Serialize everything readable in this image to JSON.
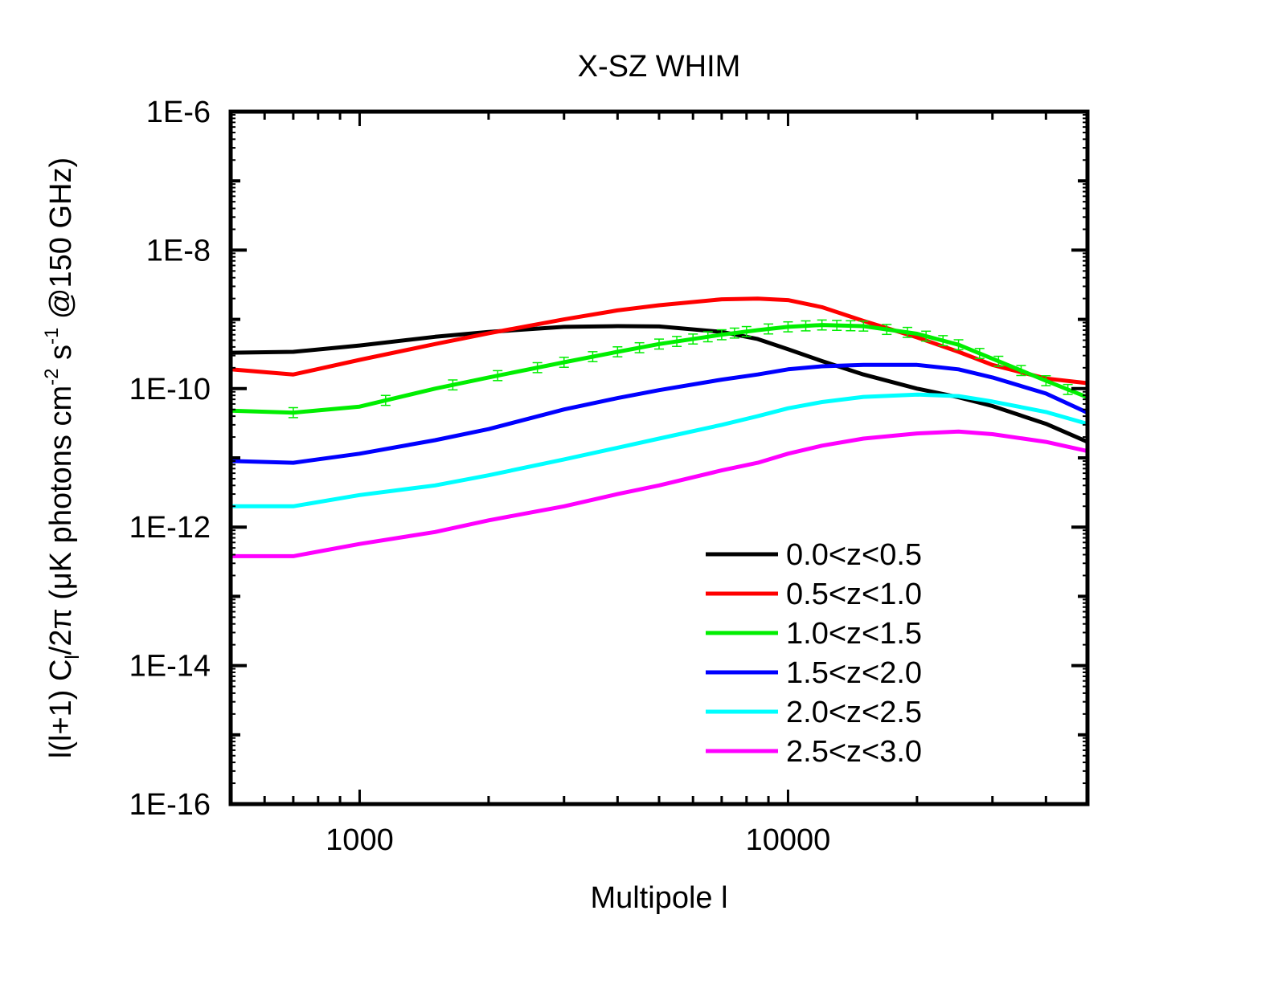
{
  "chart_data": {
    "type": "line",
    "title": "X-SZ WHIM",
    "xlabel": "Multipole l",
    "ylabel": {
      "part1": "l(l+1) C",
      "sub": "l",
      "part2": "/2π (μK photons cm",
      "sup1": "-2",
      "part3": " s",
      "sup2": "-1",
      "part4": " @150 GHz)"
    },
    "xscale": "log",
    "yscale": "log",
    "xlim": [
      500,
      50000
    ],
    "ylim": [
      1e-16,
      1e-06
    ],
    "xticks": [
      {
        "value": 1000,
        "label": "1000"
      },
      {
        "value": 10000,
        "label": "10000"
      }
    ],
    "yticks": [
      {
        "value": 1e-06,
        "label": "1E-6"
      },
      {
        "value": 1e-08,
        "label": "1E-8"
      },
      {
        "value": 1e-10,
        "label": "1E-10"
      },
      {
        "value": 1e-12,
        "label": "1E-12"
      },
      {
        "value": 1e-14,
        "label": "1E-14"
      },
      {
        "value": 1e-16,
        "label": "1E-16"
      }
    ],
    "legend_position": "lower-right",
    "x": [
      500,
      700,
      1000,
      1500,
      2000,
      3000,
      4000,
      5000,
      7000,
      8500,
      10000,
      12000,
      15000,
      20000,
      25000,
      30000,
      40000,
      50000
    ],
    "series": [
      {
        "name": "0.0<z<0.5",
        "color": "#000000",
        "values": [
          3.3e-10,
          3.4e-10,
          4.2e-10,
          5.6e-10,
          6.6e-10,
          7.8e-10,
          8e-10,
          7.9e-10,
          6.6e-10,
          5.2e-10,
          3.7e-10,
          2.5e-10,
          1.6e-10,
          1e-10,
          7.5e-11,
          5.6e-11,
          3.1e-11,
          1.7e-11
        ]
      },
      {
        "name": "0.5<z<1.0",
        "color": "#ff0000",
        "values": [
          1.9e-10,
          1.6e-10,
          2.6e-10,
          4.4e-10,
          6.3e-10,
          1e-09,
          1.35e-09,
          1.6e-09,
          1.95e-09,
          2e-09,
          1.9e-09,
          1.5e-09,
          9.5e-10,
          5.5e-10,
          3.4e-10,
          2.2e-10,
          1.4e-10,
          1.2e-10
        ]
      },
      {
        "name": "1.0<z<1.5",
        "color": "#00ee00",
        "values": [
          4.8e-11,
          4.5e-11,
          5.5e-11,
          1e-10,
          1.45e-10,
          2.4e-10,
          3.4e-10,
          4.4e-10,
          6e-10,
          7e-10,
          7.8e-10,
          8.3e-10,
          8e-10,
          6.2e-10,
          4.3e-10,
          2.7e-10,
          1.3e-10,
          7.5e-11
        ]
      },
      {
        "name": "1.5<z<2.0",
        "color": "#0000ff",
        "values": [
          9e-12,
          8.5e-12,
          1.15e-11,
          1.8e-11,
          2.6e-11,
          5e-11,
          7.3e-11,
          9.5e-11,
          1.35e-10,
          1.6e-10,
          1.9e-10,
          2.1e-10,
          2.2e-10,
          2.2e-10,
          1.9e-10,
          1.45e-10,
          8.5e-11,
          4.5e-11
        ]
      },
      {
        "name": "2.0<z<2.5",
        "color": "#00ffff",
        "values": [
          2e-12,
          2e-12,
          2.9e-12,
          4e-12,
          5.6e-12,
          9.5e-12,
          1.4e-11,
          1.9e-11,
          3e-11,
          4e-11,
          5.2e-11,
          6.4e-11,
          7.6e-11,
          8.2e-11,
          7.8e-11,
          6.5e-11,
          4.6e-11,
          3.1e-11
        ]
      },
      {
        "name": "2.5<z<3.0",
        "color": "#ff00ff",
        "values": [
          3.8e-13,
          3.8e-13,
          5.7e-13,
          8.5e-13,
          1.25e-12,
          2e-12,
          3e-12,
          4e-12,
          6.6e-12,
          8.5e-12,
          1.15e-11,
          1.5e-11,
          1.9e-11,
          2.25e-11,
          2.4e-11,
          2.2e-11,
          1.7e-11,
          1.25e-11
        ]
      }
    ],
    "error_bars": {
      "series": "1.0<z<1.5",
      "x": [
        700,
        1150,
        1650,
        2100,
        2600,
        3000,
        3500,
        4000,
        4500,
        5000,
        5500,
        6000,
        6500,
        7000,
        7500,
        8000,
        9000,
        10000,
        11000,
        12000,
        13000,
        14000,
        15000,
        17000,
        19000,
        21000,
        23000,
        25000,
        28000,
        31000,
        35000,
        40000,
        45000
      ],
      "rel_err": 0.18
    }
  }
}
